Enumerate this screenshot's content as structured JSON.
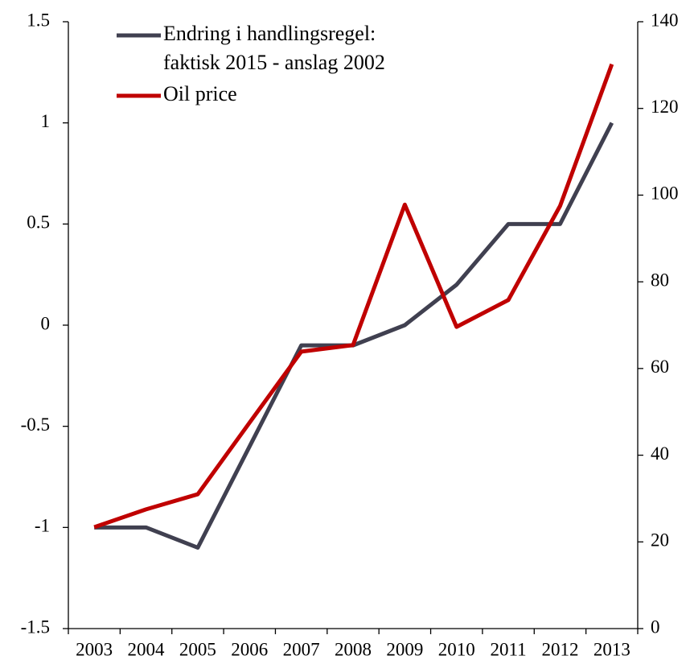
{
  "chart_data": {
    "type": "line",
    "categories": [
      "2003",
      "2004",
      "2005",
      "2006",
      "2007",
      "2008",
      "2009",
      "2010",
      "2011",
      "2012",
      "2013"
    ],
    "series": [
      {
        "name": "Endring i handlingsregel:\nfaktisk 2015 - anslag 2002",
        "color": "#404050",
        "values": [
          -1,
          -1,
          -1.1,
          -0.6,
          -0.1,
          -0.1,
          0,
          0.2,
          0.5,
          0.5,
          1.0
        ]
      },
      {
        "name": "Oil price",
        "color": "#c00000",
        "axis": "y2",
        "values": [
          23.4,
          27.5,
          31.0,
          47.5,
          63.9,
          65.4,
          97.8,
          69.6,
          75.8,
          97.5,
          130.2
        ]
      }
    ],
    "ylim": [
      -1.5,
      1.5
    ],
    "yticks": [
      -1.5,
      -1,
      -0.5,
      0,
      0.5,
      1,
      1.5
    ],
    "y2lim": [
      0,
      140
    ],
    "y2ticks": [
      0,
      20,
      40,
      60,
      80,
      100,
      120,
      140
    ],
    "legend": "upper-left"
  }
}
